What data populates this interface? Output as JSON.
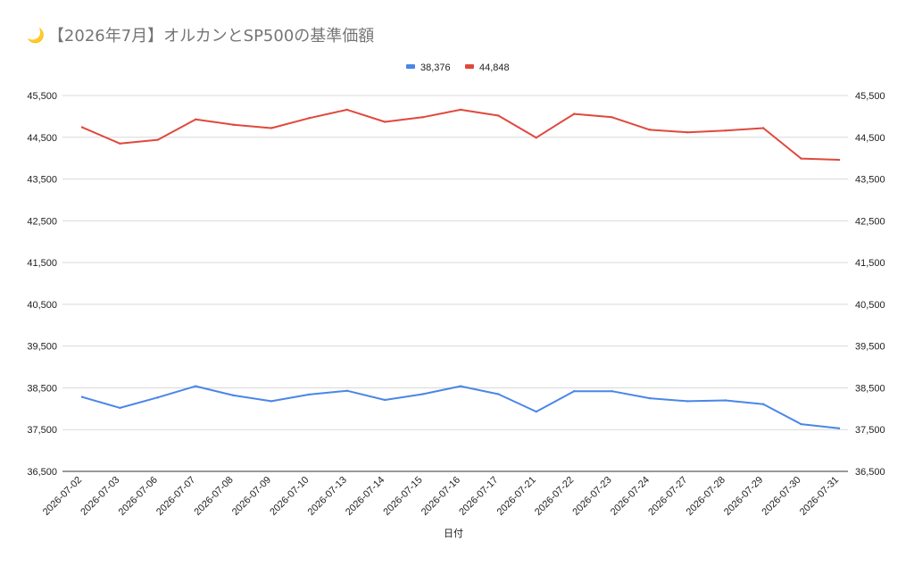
{
  "page": {
    "title_icon": "crescent-moon-icon",
    "title_icon_glyph": "🌙",
    "title": "【2026年7月】オルカンとSP500の基準価額"
  },
  "colors": {
    "series_blue": "#4a86e8",
    "series_red": "#e0483d",
    "grid": "#d9d9d9"
  },
  "chart_data": {
    "type": "line",
    "title": "【2026年7月】オルカンとSP500の基準価額",
    "xlabel": "日付",
    "ylabel": "",
    "ylim": [
      36500,
      45500
    ],
    "yticks": [
      36500,
      37500,
      38500,
      39500,
      40500,
      41500,
      42500,
      43500,
      44500,
      45500
    ],
    "ytick_labels": [
      "36,500",
      "37,500",
      "38,500",
      "39,500",
      "40,500",
      "41,500",
      "42,500",
      "43,500",
      "44,500",
      "45,500"
    ],
    "secondary_axis": true,
    "grid": true,
    "legend_position": "top",
    "categories": [
      "2026-07-02",
      "2026-07-03",
      "2026-07-06",
      "2026-07-07",
      "2026-07-08",
      "2026-07-09",
      "2026-07-10",
      "2026-07-13",
      "2026-07-14",
      "2026-07-15",
      "2026-07-16",
      "2026-07-17",
      "2026-07-21",
      "2026-07-22",
      "2026-07-23",
      "2026-07-24",
      "2026-07-27",
      "2026-07-28",
      "2026-07-29",
      "2026-07-30",
      "2026-07-31"
    ],
    "series": [
      {
        "name": "38,376",
        "color": "#4a86e8",
        "values": [
          38280,
          38020,
          38270,
          38540,
          38320,
          38180,
          38340,
          38430,
          38210,
          38350,
          38540,
          38350,
          37930,
          38420,
          38420,
          38250,
          38180,
          38200,
          38110,
          37630,
          37530
        ]
      },
      {
        "name": "44,848",
        "color": "#e0483d",
        "values": [
          44740,
          44350,
          44440,
          44930,
          44800,
          44720,
          44960,
          45160,
          44870,
          44980,
          45160,
          45020,
          44490,
          45060,
          44980,
          44680,
          44620,
          44660,
          44720,
          43990,
          43960
        ]
      }
    ]
  }
}
